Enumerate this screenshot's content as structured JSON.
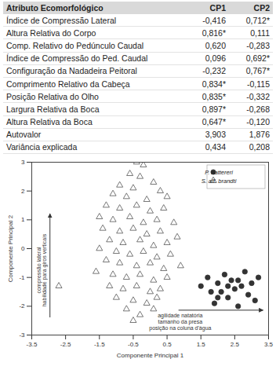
{
  "table": {
    "header": [
      "Atributo Ecomorfológico",
      "CP1",
      "CP2"
    ],
    "rows": [
      [
        "Índice de Compressão Lateral",
        "-0,416",
        "0,712*"
      ],
      [
        "Altura Relativa do Corpo",
        "0,816*",
        "0,111"
      ],
      [
        "Comp. Relativo do Pedúnculo Caudal",
        "0,620",
        "-0,283"
      ],
      [
        "Índice de Compressão do Ped. Caudal",
        "0,096",
        "0,692*"
      ],
      [
        "Configuração da Nadadeira Peitoral",
        "-0,232",
        "0,767*"
      ],
      [
        "Comprimento Relativo da Cabeça",
        "0,834*",
        "-0,115"
      ],
      [
        "Posição Relativa do Olho",
        "0,835*",
        "-0,332"
      ],
      [
        "Largura Relativa da Boca",
        "0,897*",
        "-0,268"
      ],
      [
        "Altura Relativa da Boca",
        "0,647*",
        "-0,120"
      ]
    ],
    "footer_rows": [
      [
        "Autovalor",
        "3,903",
        "1,876"
      ],
      [
        "Variância explicada",
        "0,434",
        "0,208"
      ]
    ]
  },
  "chart_data": {
    "type": "scatter",
    "x_label": "Componente Principal 1",
    "y_label": "Componente Principal 2",
    "xlim": [
      -3.5,
      3.5
    ],
    "xticks": [
      -3.5,
      -2.5,
      -1.5,
      -0.5,
      0.5,
      1.5,
      2.5,
      3.5
    ],
    "ylim": [
      -3,
      3
    ],
    "yticks": [
      -3,
      -2,
      -1,
      0,
      1,
      2,
      3
    ],
    "grid": false,
    "legend": "top-right",
    "annotations": [
      [
        "compressão lateral",
        "habilidade para giros verticais"
      ],
      [
        "agilidade natatória",
        "tamanho da presa",
        "posição na coluna d'água"
      ]
    ],
    "series": [
      {
        "name": "P. nattereri",
        "color": "#333333",
        "marker": "circle",
        "x": [
          1.5,
          1.7,
          1.9,
          2.0,
          2.1,
          2.2,
          2.3,
          2.4,
          2.5,
          2.6,
          2.7,
          2.8,
          2.9,
          3.0,
          3.1,
          3.2,
          2.3,
          2.6,
          1.8,
          2.0
        ],
        "values": [
          -1.3,
          -1.0,
          -1.9,
          -1.2,
          -1.5,
          -0.9,
          -1.7,
          -1.1,
          -1.4,
          -2.0,
          -1.3,
          -0.8,
          -1.6,
          -1.2,
          -1.8,
          -1.0,
          -1.3,
          -1.1,
          -1.5,
          -1.7
        ]
      },
      {
        "name": "S. aff. brandti",
        "color": "#555555",
        "marker": "triangle-open",
        "x": [
          -0.4,
          -0.2,
          -0.6,
          -0.3,
          0.1,
          -0.9,
          -0.5,
          0.3,
          -1.1,
          -0.7,
          -0.1,
          0.5,
          -1.3,
          -0.9,
          -0.4,
          0.0,
          0.4,
          -1.5,
          -1.1,
          -0.6,
          -0.2,
          0.2,
          0.7,
          -1.4,
          -0.9,
          -0.5,
          -0.1,
          0.3,
          0.8,
          -1.2,
          -0.8,
          -0.3,
          0.1,
          0.5,
          -1.5,
          -1.0,
          -0.6,
          -0.2,
          0.2,
          0.6,
          -1.3,
          -0.9,
          -0.4,
          0.0,
          0.4,
          0.9,
          -1.6,
          -1.1,
          -0.7,
          -0.3,
          0.1,
          0.5,
          -1.2,
          -0.8,
          -0.4,
          0.0,
          0.3,
          -1.0,
          -0.5,
          -0.1,
          0.2,
          -0.7,
          -0.3,
          0.1,
          -0.5,
          -2.7
        ],
        "values": [
          3.0,
          2.9,
          2.6,
          2.5,
          2.3,
          2.2,
          2.1,
          2.0,
          1.9,
          1.8,
          1.7,
          1.8,
          1.5,
          1.4,
          1.5,
          1.3,
          1.4,
          1.1,
          1.0,
          1.1,
          0.9,
          1.0,
          0.9,
          0.7,
          0.6,
          0.7,
          0.5,
          0.6,
          0.4,
          0.3,
          0.2,
          0.3,
          0.1,
          0.2,
          0.0,
          -0.1,
          -0.2,
          -0.1,
          -0.3,
          -0.2,
          -0.4,
          -0.5,
          -0.6,
          -0.5,
          -0.7,
          -0.6,
          -0.8,
          -0.9,
          -1.0,
          -0.9,
          -1.1,
          -1.0,
          -1.3,
          -1.4,
          -1.3,
          -1.5,
          -1.4,
          -1.7,
          -1.8,
          -1.9,
          -1.7,
          -2.1,
          -2.3,
          -2.1,
          -2.5,
          -1.3
        ]
      }
    ]
  }
}
